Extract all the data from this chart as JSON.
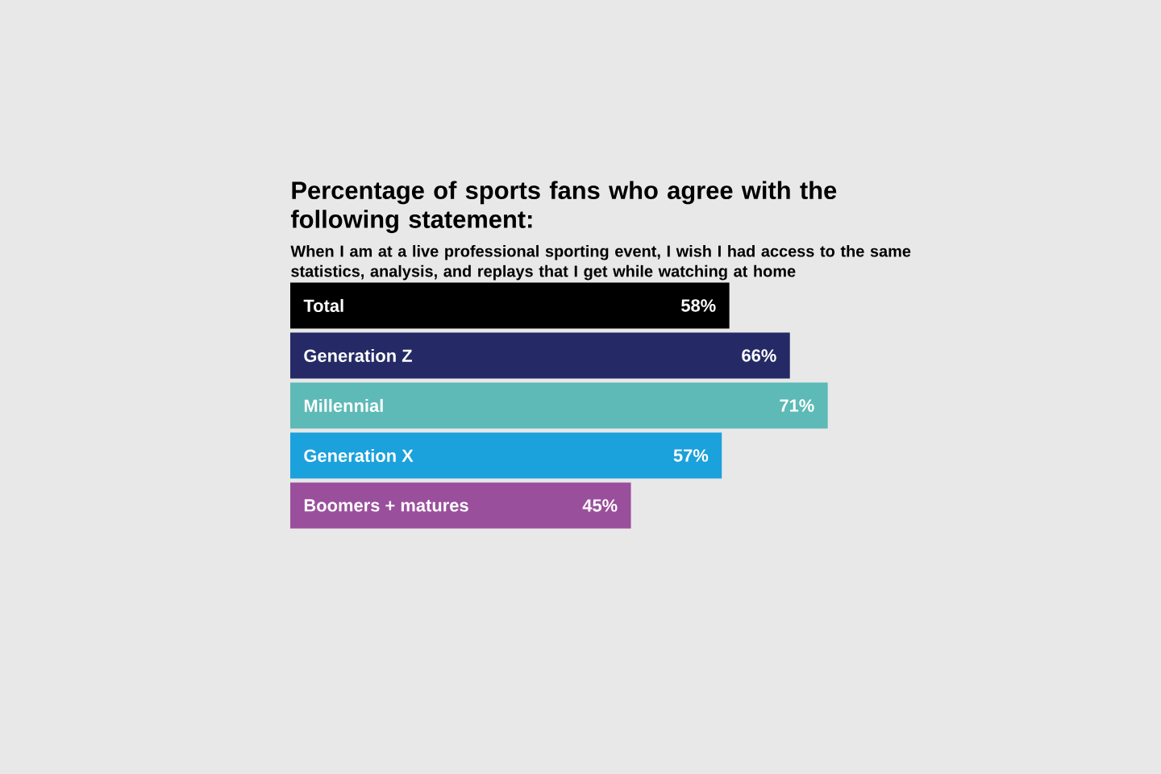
{
  "chart_data": {
    "type": "bar",
    "orientation": "horizontal",
    "title": "Percentage of sports fans who agree with the following statement:",
    "subtitle": "When I am at a live professional sporting event, I wish I had access to the same statistics, analysis, and replays that I get while watching at home",
    "categories": [
      "Total",
      "Generation Z",
      "Millennial",
      "Generation X",
      "Boomers + matures"
    ],
    "values": [
      58,
      66,
      71,
      57,
      45
    ],
    "value_labels": [
      "58%",
      "66%",
      "71%",
      "57%",
      "45%"
    ],
    "colors": [
      "#000000",
      "#252a66",
      "#5dbab6",
      "#1ba1dc",
      "#9a4f9c"
    ]
  }
}
